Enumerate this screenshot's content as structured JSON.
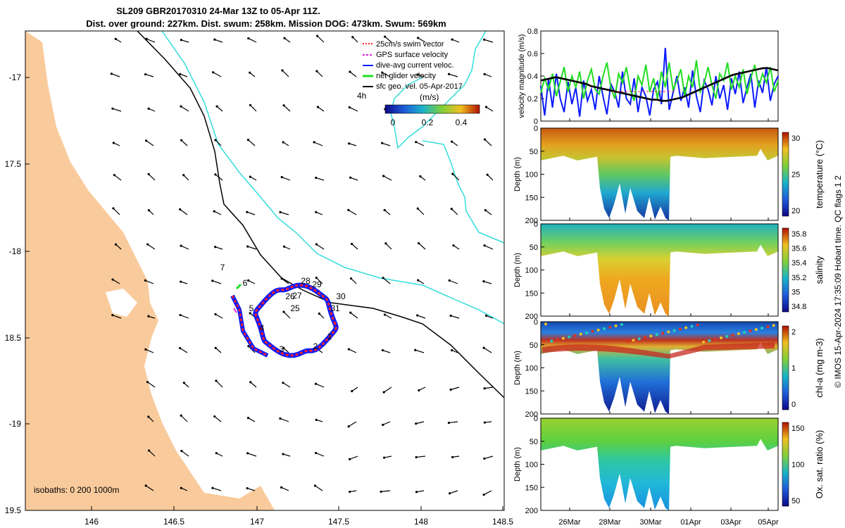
{
  "title_line1": "SL209 GBR20170310 24-Mar 13Z to 05-Apr 11Z.",
  "title_line2": "Dist. over ground: 227km. Dist. swum: 258km. Mission DOG: 473km. Swum: 569km",
  "copyright": "© IMOS 15-Apr-2024 17:35:09 Hobart time. QC flags 1  2",
  "colors": {
    "land": "#f9cb9c",
    "isobath200": "#000000",
    "isobath1000": "#33dddd",
    "track_red": "#ff2020",
    "track_blue": "#0a1aff",
    "net_green": "#22dd22",
    "gps_magenta": "#dd22dd"
  },
  "map": {
    "lon_ticks": [
      "146",
      "146.5",
      "147",
      "147.5",
      "148",
      "148.5"
    ],
    "lat_ticks": [
      "-17",
      "17.5",
      "-18",
      "18.5",
      "-19",
      "19.5"
    ],
    "isobath_text": "isobaths: 0   200  1000m",
    "scale_label": "4h",
    "colorbar_title": "(m/s)",
    "colorbar_ticks": [
      "0",
      "0.2",
      "0.4"
    ],
    "legend": [
      "25cm/s swim vector",
      "GPS surface velocity",
      "dive-avg current veloc.",
      "net glider velocity",
      "sfc geo. vel. 05-Apr-2017"
    ],
    "day_labels": [
      "7",
      "6",
      "5",
      "4",
      "3",
      "2",
      "1",
      "31",
      "30",
      "29",
      "28",
      "27",
      "26",
      "25"
    ]
  },
  "chart_data": [
    {
      "type": "line",
      "title": "",
      "ylabel": "velocity magnitude (m/s)",
      "ylim": [
        0,
        0.8
      ],
      "yticks": [
        "0",
        "0.2",
        "0.4",
        "0.6",
        "0.8"
      ],
      "x_ticks": [
        "26Mar",
        "28Mar",
        "30Mar",
        "01Apr",
        "03Apr",
        "05Apr"
      ],
      "series": [
        {
          "name": "dive-avg current",
          "color": "#0a1aff",
          "values": [
            0.31,
            0.05,
            0.38,
            0.12,
            0.42,
            0.2,
            0.08,
            0.35,
            0.15,
            0.3,
            0.04,
            0.36,
            0.18,
            0.28,
            0.1,
            0.4,
            0.22,
            0.06,
            0.33,
            0.26,
            0.12,
            0.44,
            0.2,
            0.15,
            0.38,
            0.08,
            0.3,
            0.22,
            0.05,
            0.28,
            0.35,
            0.15,
            0.65,
            0.1,
            0.25,
            0.4,
            0.18,
            0.3,
            0.12,
            0.45,
            0.22,
            0.08,
            0.36,
            0.28,
            0.14,
            0.4,
            0.2,
            0.32,
            0.1,
            0.38,
            0.24,
            0.44,
            0.16,
            0.3,
            0.42,
            0.12,
            0.36,
            0.25,
            0.48,
            0.18,
            0.33,
            0.4
          ]
        },
        {
          "name": "net glider velocity",
          "color": "#22dd22",
          "values": [
            0.25,
            0.38,
            0.28,
            0.42,
            0.22,
            0.35,
            0.48,
            0.26,
            0.4,
            0.3,
            0.44,
            0.2,
            0.36,
            0.46,
            0.28,
            0.24,
            0.4,
            0.52,
            0.3,
            0.2,
            0.42,
            0.34,
            0.48,
            0.28,
            0.18,
            0.4,
            0.32,
            0.5,
            0.26,
            0.38,
            0.2,
            0.44,
            0.3,
            0.52,
            0.28,
            0.36,
            0.46,
            0.22,
            0.4,
            0.3,
            0.54,
            0.26,
            0.34,
            0.48,
            0.32,
            0.2,
            0.42,
            0.36,
            0.52,
            0.28,
            0.4,
            0.3,
            0.46,
            0.24,
            0.38,
            0.5,
            0.3,
            0.42,
            0.34,
            0.48,
            0.26,
            0.36
          ]
        },
        {
          "name": "sfc geo. vel.",
          "color": "#000000",
          "values": [
            0.36,
            0.37,
            0.38,
            0.39,
            0.38,
            0.37,
            0.36,
            0.35,
            0.34,
            0.33,
            0.31,
            0.3,
            0.29,
            0.28,
            0.27,
            0.26,
            0.25,
            0.24,
            0.23,
            0.22,
            0.21,
            0.2,
            0.19,
            0.19,
            0.18,
            0.18,
            0.19,
            0.2,
            0.21,
            0.23,
            0.25,
            0.27,
            0.29,
            0.31,
            0.33,
            0.35,
            0.37,
            0.39,
            0.41,
            0.42,
            0.43,
            0.44,
            0.45,
            0.46,
            0.47,
            0.47,
            0.46,
            0.45
          ]
        }
      ]
    },
    {
      "type": "heatmap",
      "ylabel": "Depth (m)",
      "clabel": "temperature (°C)",
      "yticks": [
        "0",
        "50",
        "100",
        "150",
        "200"
      ],
      "cticks": [
        "30",
        "25",
        "20"
      ]
    },
    {
      "type": "heatmap",
      "ylabel": "Depth (m)",
      "clabel": "salinity",
      "yticks": [
        "0",
        "50",
        "100",
        "150",
        "200"
      ],
      "cticks": [
        "35.8",
        "35.6",
        "35.4",
        "35.2",
        "35",
        "34.8"
      ]
    },
    {
      "type": "heatmap",
      "ylabel": "Depth (m)",
      "clabel": "chl-a (mg m-3)",
      "yticks": [
        "0",
        "50",
        "100",
        "150",
        "200"
      ],
      "cticks": [
        "2",
        "1",
        "0"
      ]
    },
    {
      "type": "heatmap",
      "ylabel": "Depth (m)",
      "clabel": "Ox. sat. ratio (%)",
      "yticks": [
        "0",
        "50",
        "100",
        "150",
        "200"
      ],
      "cticks": [
        "150",
        "100",
        "50"
      ]
    }
  ]
}
